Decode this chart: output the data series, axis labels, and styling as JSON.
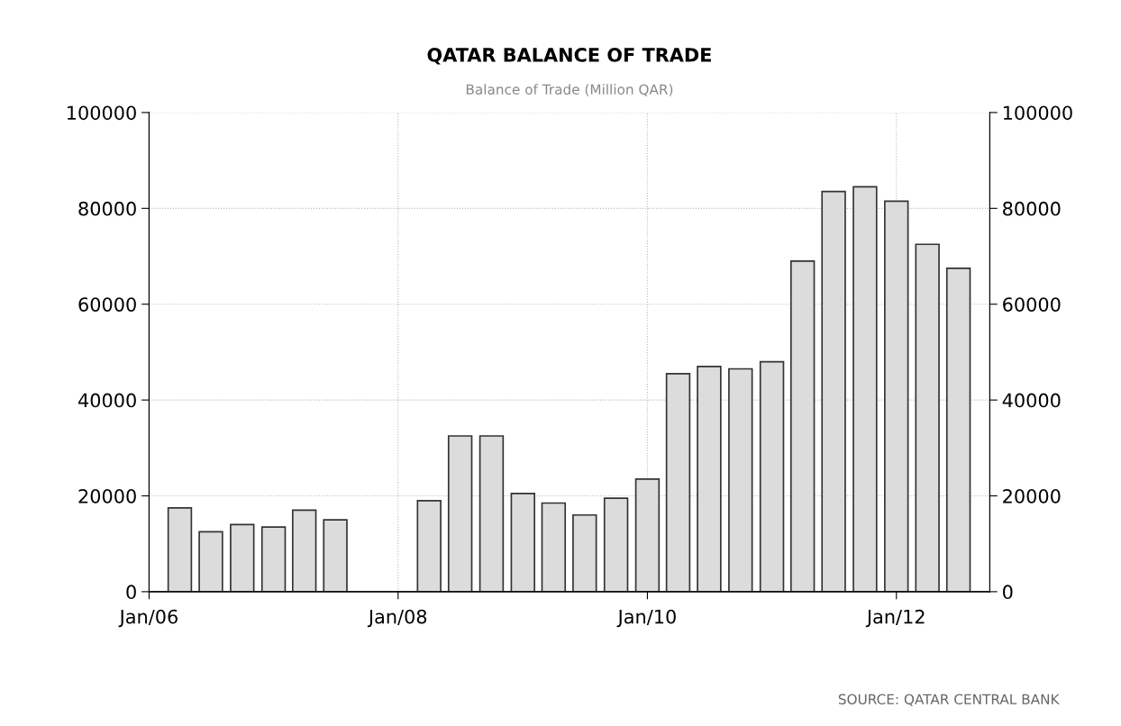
{
  "chart_data": {
    "type": "bar",
    "title": "QATAR BALANCE OF TRADE",
    "subtitle": "Balance of Trade (Million QAR)",
    "x": [
      "2006-04",
      "2006-07",
      "2006-10",
      "2007-01",
      "2007-04",
      "2007-07",
      "2008-04",
      "2008-07",
      "2008-10",
      "2009-01",
      "2009-04",
      "2009-07",
      "2009-10",
      "2010-01",
      "2010-04",
      "2010-07",
      "2010-10",
      "2011-01",
      "2011-04",
      "2011-07",
      "2011-10",
      "2012-01",
      "2012-04",
      "2012-07"
    ],
    "values": [
      17500,
      12500,
      14000,
      13500,
      17000,
      15000,
      19000,
      32500,
      32500,
      20500,
      18500,
      16000,
      19500,
      23500,
      45500,
      47000,
      46500,
      48000,
      69000,
      83500,
      84500,
      81500,
      72500,
      67500
    ],
    "color": "#dcdcdc",
    "xlim": [
      "2006-01",
      "2012-10"
    ],
    "xticks": [
      {
        "value": "2006-01",
        "label": "Jan/06"
      },
      {
        "value": "2008-01",
        "label": "Jan/08"
      },
      {
        "value": "2010-01",
        "label": "Jan/10"
      },
      {
        "value": "2012-01",
        "label": "Jan/12"
      }
    ],
    "ylim": [
      0,
      100000
    ],
    "yticks": [
      0,
      20000,
      40000,
      60000,
      80000,
      100000
    ],
    "y2lim": [
      0,
      100000
    ],
    "y2ticks": [
      0,
      20000,
      40000,
      60000,
      80000,
      100000
    ],
    "grid": true,
    "annotations": [
      "SOURCE: QATAR CENTRAL BANK"
    ]
  }
}
